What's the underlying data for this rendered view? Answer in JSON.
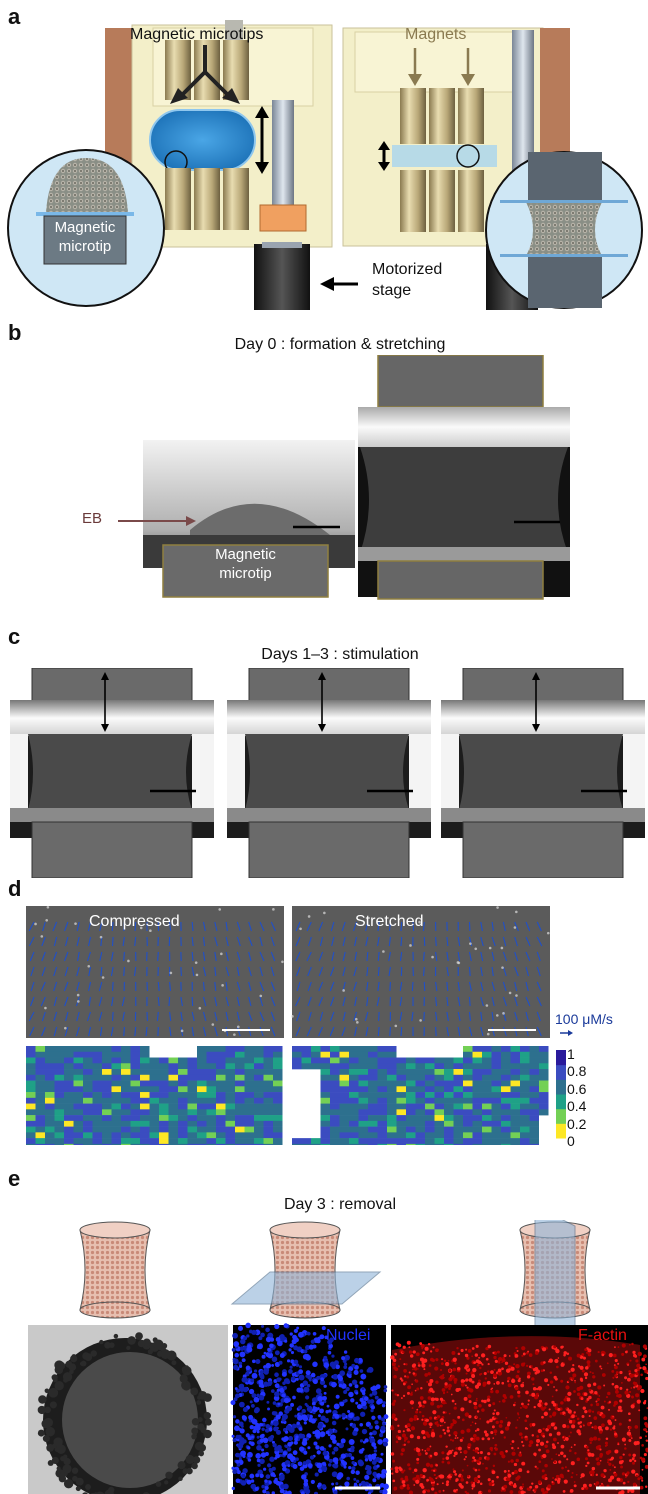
{
  "panels": {
    "a": {
      "label": "a",
      "tips_label": "Magnetic microtips",
      "magnets_label": "Magnets",
      "tip_label_line1": "Magnetic",
      "tip_label_line2": "microtip",
      "stage_label_line1": "Motorized",
      "stage_label_line2": "stage"
    },
    "b": {
      "label": "b",
      "title": "Day 0 : formation & stretching",
      "eb_label": "EB",
      "tip_label_line1": "Magnetic",
      "tip_label_line2": "microtip"
    },
    "c": {
      "label": "c",
      "title": "Days 1–3 : stimulation"
    },
    "d": {
      "label": "d",
      "compressed_label": "Compressed",
      "stretched_label": "Stretched",
      "velocity_label": "100 μM/s",
      "colorbar": {
        "ticks": [
          "1",
          "0.8",
          "0.6",
          "0.4",
          "0.2",
          "0"
        ],
        "colors": [
          "#fde725",
          "#73d055",
          "#1fa187",
          "#2d708e",
          "#3b4cc0",
          "#2a1a9c"
        ]
      }
    },
    "e": {
      "label": "e",
      "title": "Day 3 : removal",
      "nuclei_label": "Nuclei",
      "factin_label": "F-actin",
      "nuclei_color": "#2233ff",
      "factin_color": "#e81010"
    }
  }
}
